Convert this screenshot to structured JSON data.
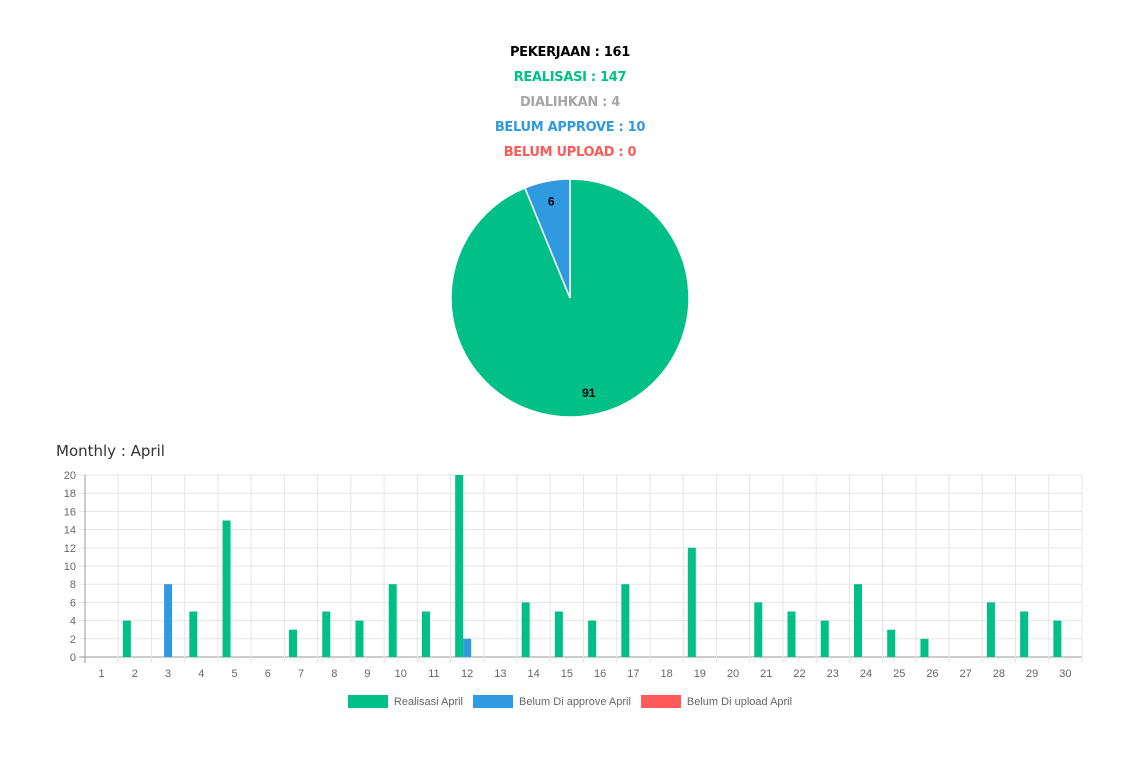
{
  "stats": {
    "pekerjaan": "PEKERJAAN : 161",
    "realisasi": "REALISASI : 147",
    "dialihkan": "DIALIHKAN : 4",
    "belum_approve": "BELUM APPROVE : 10",
    "belum_upload": "BELUM UPLOAD : 0"
  },
  "colors": {
    "black": "#000000",
    "green": "#00bf87",
    "gray": "#a6a6a6",
    "blue": "#2f9ae0",
    "red": "#ff5a5a"
  },
  "monthly_title": "Monthly : April",
  "chart_data": [
    {
      "type": "pie",
      "slices": [
        {
          "label": "Realisasi",
          "value": 91,
          "color": "#00bf87"
        },
        {
          "label": "Belum Approve",
          "value": 6,
          "color": "#2f9ae0"
        }
      ]
    },
    {
      "type": "bar",
      "categories": [
        "1",
        "2",
        "3",
        "4",
        "5",
        "6",
        "7",
        "8",
        "9",
        "10",
        "11",
        "12",
        "13",
        "14",
        "15",
        "16",
        "17",
        "18",
        "19",
        "20",
        "21",
        "22",
        "23",
        "24",
        "25",
        "26",
        "27",
        "28",
        "29",
        "30"
      ],
      "series": [
        {
          "name": "Realisasi April",
          "color": "#00bf87",
          "values": [
            0,
            4,
            0,
            5,
            15,
            0,
            3,
            5,
            4,
            8,
            5,
            20,
            0,
            6,
            5,
            4,
            8,
            0,
            12,
            0,
            6,
            5,
            4,
            8,
            3,
            2,
            0,
            6,
            5,
            4
          ]
        },
        {
          "name": "Belum Di approve April",
          "color": "#2f9ae0",
          "values": [
            0,
            0,
            8,
            0,
            0,
            0,
            0,
            0,
            0,
            0,
            0,
            2,
            0,
            0,
            0,
            0,
            0,
            0,
            0,
            0,
            0,
            0,
            0,
            0,
            0,
            0,
            0,
            0,
            0,
            0
          ]
        },
        {
          "name": "Belum Di upload April",
          "color": "#ff5a5a",
          "values": [
            0,
            0,
            0,
            0,
            0,
            0,
            0,
            0,
            0,
            0,
            0,
            0,
            0,
            0,
            0,
            0,
            0,
            0,
            0,
            0,
            0,
            0,
            0,
            0,
            0,
            0,
            0,
            0,
            0,
            0
          ]
        }
      ],
      "ylim": [
        0,
        20
      ],
      "yticks": [
        0,
        2,
        4,
        6,
        8,
        10,
        12,
        14,
        16,
        18,
        20
      ],
      "grid": true,
      "legend": "bottom"
    }
  ]
}
